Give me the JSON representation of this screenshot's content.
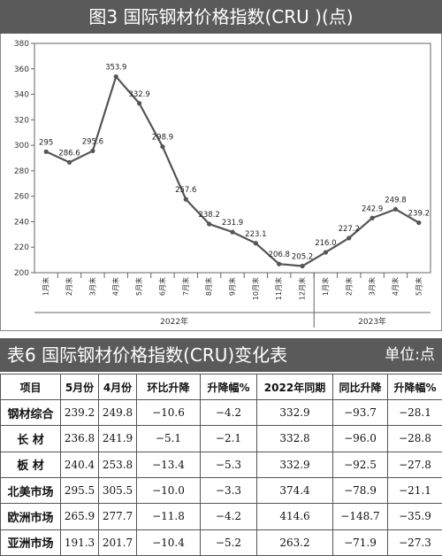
{
  "figure_title": "图3   国际钢材价格指数(CRU )(点)",
  "chart_data": {
    "type": "line",
    "categories": [
      "1月末",
      "2月末",
      "3月末",
      "4月末",
      "5月末",
      "6月末",
      "7月末",
      "8月末",
      "9月末",
      "10月末",
      "11月末",
      "12月末",
      "1月末",
      "2月末",
      "3月末",
      "4月末",
      "5月末"
    ],
    "values": [
      295,
      286.6,
      295.6,
      353.9,
      332.9,
      298.9,
      257.6,
      238.2,
      231.9,
      223.1,
      206.8,
      205.2,
      216.0,
      227.2,
      242.9,
      249.8,
      239.2
    ],
    "data_labels": [
      "295",
      "286.6",
      "295.6",
      "353.9",
      "332.9",
      "298.9",
      "257.6",
      "238.2",
      "231.9",
      "223.1",
      "206.8",
      "205.2",
      "216.0",
      "227.2",
      "242.9",
      "249.8",
      "239.2"
    ],
    "year_groups": [
      {
        "label": "2022年",
        "count": 12
      },
      {
        "label": "2023年",
        "count": 5
      }
    ],
    "y_ticks": [
      "200",
      "220",
      "240",
      "260",
      "280",
      "300",
      "320",
      "340",
      "360",
      "380"
    ],
    "ylim": [
      200,
      380
    ],
    "line_color": "#555555",
    "grid": false
  },
  "table": {
    "title": "表6  国际钢材价格指数(CRU)变化表",
    "unit": "单位:点",
    "headers": [
      "项目",
      "5月份",
      "4月份",
      "环比升降",
      "升降幅%",
      "2022年同期",
      "同比升降",
      "升降幅%"
    ],
    "rows": [
      [
        "钢材综合",
        "239.2",
        "249.8",
        "−10.6",
        "−4.2",
        "332.9",
        "−93.7",
        "−28.1"
      ],
      [
        "长  材",
        "236.8",
        "241.9",
        "−5.1",
        "−2.1",
        "332.8",
        "−96.0",
        "−28.8"
      ],
      [
        "板  材",
        "240.4",
        "253.8",
        "−13.4",
        "−5.3",
        "332.9",
        "−92.5",
        "−27.8"
      ],
      [
        "北美市场",
        "295.5",
        "305.5",
        "−10.0",
        "−3.3",
        "374.4",
        "−78.9",
        "−21.1"
      ],
      [
        "欧洲市场",
        "265.9",
        "277.7",
        "−11.8",
        "−4.2",
        "414.6",
        "−148.7",
        "−35.9"
      ],
      [
        "亚洲市场",
        "191.3",
        "201.7",
        "−10.4",
        "−5.2",
        "263.2",
        "−71.9",
        "−27.3"
      ]
    ]
  }
}
